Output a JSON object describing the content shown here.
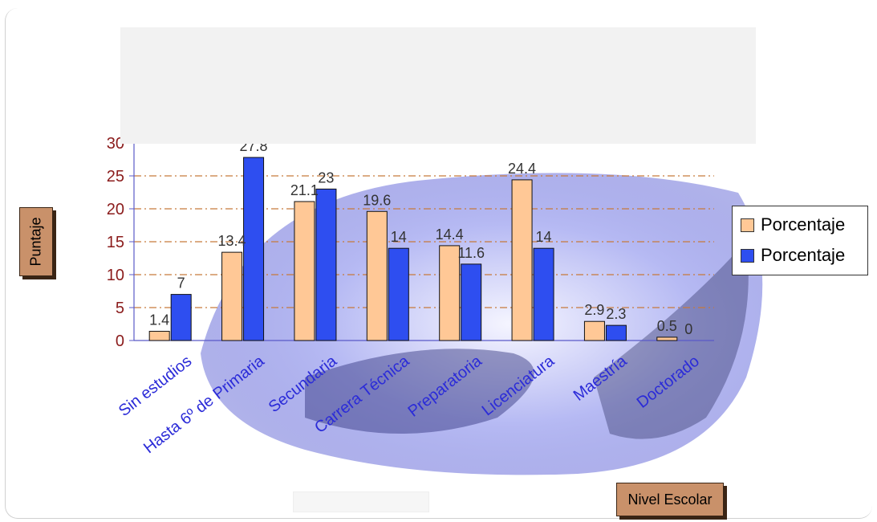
{
  "chart_data": {
    "type": "bar",
    "categories": [
      "Sin estudios",
      "Hasta 6º de Primaria",
      "Secundaria",
      "Carrera Técnica",
      "Preparatoria",
      "Licenciatura",
      "Maestría",
      "Doctorado"
    ],
    "series": [
      {
        "name": "Porcentaje",
        "color": "#ffc896",
        "values": [
          1.4,
          13.4,
          21.1,
          19.6,
          14.4,
          24.4,
          2.9,
          0.5
        ]
      },
      {
        "name": "Porcentaje",
        "color": "#2e4ef0",
        "values": [
          7,
          27.8,
          23,
          14,
          11.6,
          14,
          2.3,
          0
        ]
      }
    ],
    "data_labels": [
      [
        "1.4",
        "13.4",
        "21.1",
        "19.6",
        "14.4",
        "24.4",
        "2.9",
        "0.5"
      ],
      [
        "7",
        "27.8",
        "23",
        "14",
        "11.6",
        "14",
        "2.3",
        "0"
      ]
    ],
    "ylabel": "Puntaje",
    "xlabel": "Nivel Escolar",
    "ylim": [
      0,
      30
    ],
    "yticks": [
      "0",
      "5",
      "10",
      "15",
      "20",
      "25",
      "30"
    ],
    "grid": true,
    "legend_position": "right"
  }
}
